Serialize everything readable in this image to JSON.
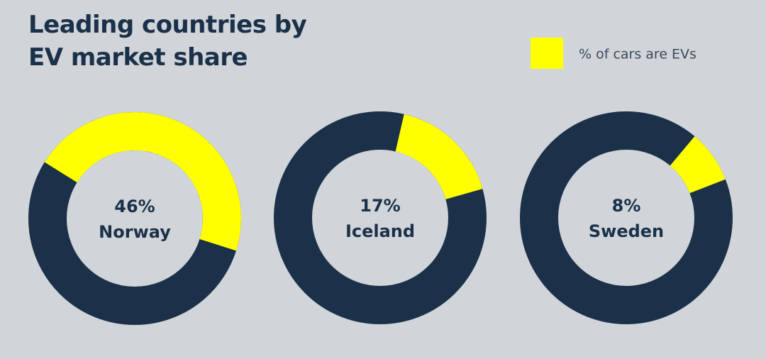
{
  "chart_data": {
    "type": "donut",
    "title": "Leading countries by EV market share",
    "categories": [
      "Norway",
      "Iceland",
      "Sweden"
    ],
    "ylim": [
      0,
      100
    ],
    "rest_color": "#1b3149",
    "series": [
      {
        "name": "% of cars are EVs",
        "color": "#ffff00",
        "values": [
          46,
          17,
          8
        ],
        "value_labels": [
          "46%",
          "17%",
          "8%"
        ]
      }
    ]
  }
}
